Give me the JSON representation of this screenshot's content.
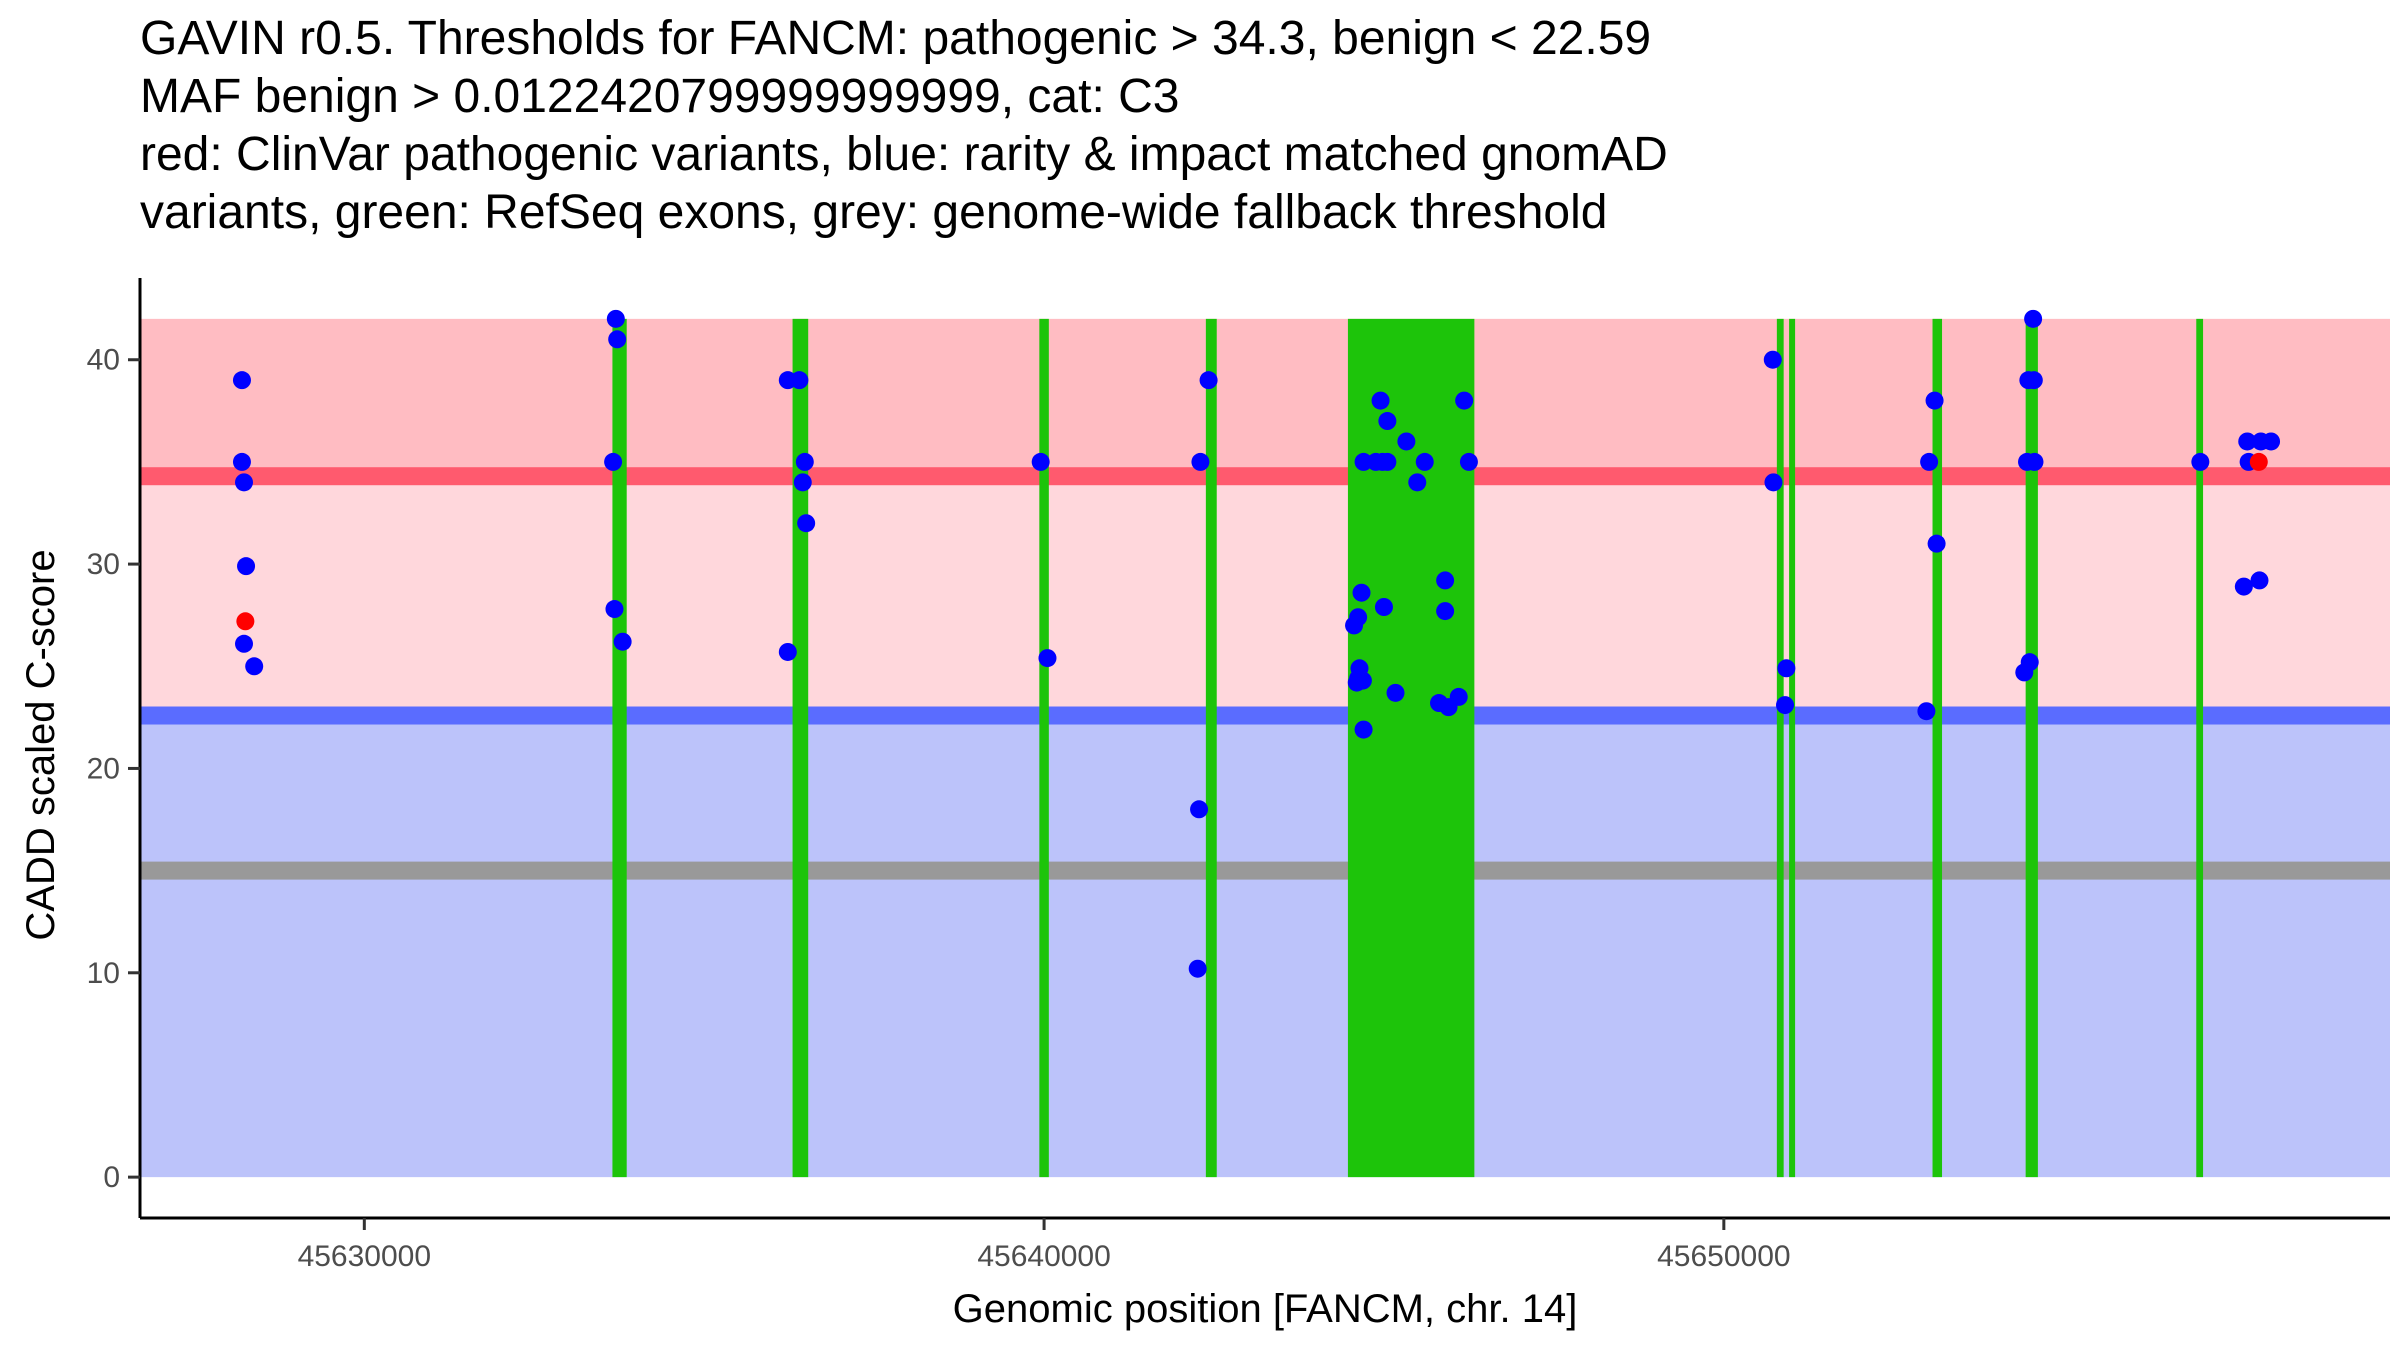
{
  "chart_data": {
    "type": "scatter",
    "title_lines": [
      "GAVIN r0.5. Thresholds for FANCM: pathogenic > 34.3, benign < 22.59",
      "MAF benign > 0.0122420799999999999, cat: C3",
      "red: ClinVar pathogenic variants, blue: rarity & impact matched gnomAD",
      "variants, green: RefSeq exons, grey: genome-wide fallback threshold"
    ],
    "xlabel": "Genomic position [FANCM, chr. 14]",
    "ylabel": "CADD scaled C-score",
    "xlim": [
      45626700,
      45659800
    ],
    "ylim": [
      -2,
      44
    ],
    "x_ticks": [
      45630000,
      45640000,
      45650000
    ],
    "x_tick_labels": [
      "45630000",
      "45640000",
      "45650000"
    ],
    "y_ticks": [
      0,
      10,
      20,
      30,
      40
    ],
    "y_tick_labels": [
      "0",
      "10",
      "20",
      "30",
      "40"
    ],
    "grid": false,
    "thresholds": {
      "pathogenic": 34.3,
      "benign": 22.59,
      "genome_wide_fallback": 15.0,
      "score_max": 42
    },
    "region_colors": {
      "pathogenic_band": "#ffbcc2",
      "grey_zone_band": "#ffd7dc",
      "benign_band": "#bcc3fa",
      "pathogenic_line": "#ff5a6e",
      "benign_line": "#5a6cff",
      "fallback_line": "#999999",
      "exon": "#1dc40a"
    },
    "exons": [
      [
        45633650,
        45633860
      ],
      [
        45636300,
        45636530
      ],
      [
        45639930,
        45640070
      ],
      [
        45642380,
        45642540
      ],
      [
        45644470,
        45646330
      ],
      [
        45650780,
        45650880
      ],
      [
        45650960,
        45651040
      ],
      [
        45653070,
        45653210
      ],
      [
        45654440,
        45654620
      ],
      [
        45656950,
        45657050
      ]
    ],
    "series": [
      {
        "name": "ClinVar pathogenic variants",
        "color": "#ff0000",
        "points": [
          [
            45628250,
            27.2
          ],
          [
            45657870,
            35.0
          ]
        ]
      },
      {
        "name": "rarity & impact matched gnomAD variants",
        "color": "#0000ff",
        "points": [
          [
            45628200,
            39.0
          ],
          [
            45628200,
            35.0
          ],
          [
            45628230,
            34.0
          ],
          [
            45628260,
            29.9
          ],
          [
            45628230,
            26.1
          ],
          [
            45628380,
            25.0
          ],
          [
            45633700,
            42.0
          ],
          [
            45633720,
            41.0
          ],
          [
            45633660,
            35.0
          ],
          [
            45633680,
            27.8
          ],
          [
            45633800,
            26.2
          ],
          [
            45636230,
            39.0
          ],
          [
            45636400,
            39.0
          ],
          [
            45636480,
            35.0
          ],
          [
            45636450,
            34.0
          ],
          [
            45636500,
            32.0
          ],
          [
            45636230,
            25.7
          ],
          [
            45639950,
            35.0
          ],
          [
            45640050,
            25.4
          ],
          [
            45642300,
            35.0
          ],
          [
            45642420,
            39.0
          ],
          [
            45642280,
            18.0
          ],
          [
            45642260,
            10.2
          ],
          [
            45644950,
            38.0
          ],
          [
            45645050,
            37.0
          ],
          [
            45645330,
            36.0
          ],
          [
            45644880,
            35.0
          ],
          [
            45644980,
            35.0
          ],
          [
            45645050,
            35.0
          ],
          [
            45645600,
            35.0
          ],
          [
            45644700,
            35.0
          ],
          [
            45645490,
            34.0
          ],
          [
            45646180,
            38.0
          ],
          [
            45646250,
            35.0
          ],
          [
            45644670,
            28.6
          ],
          [
            45644620,
            27.4
          ],
          [
            45644560,
            27.0
          ],
          [
            45645000,
            27.9
          ],
          [
            45645900,
            29.2
          ],
          [
            45645900,
            27.7
          ],
          [
            45644640,
            24.9
          ],
          [
            45644620,
            24.4
          ],
          [
            45644690,
            24.3
          ],
          [
            45644600,
            24.2
          ],
          [
            45645170,
            23.7
          ],
          [
            45645810,
            23.2
          ],
          [
            45645950,
            23.0
          ],
          [
            45646100,
            23.5
          ],
          [
            45644700,
            21.9
          ],
          [
            45650720,
            40.0
          ],
          [
            45650730,
            34.0
          ],
          [
            45650920,
            24.9
          ],
          [
            45650900,
            23.1
          ],
          [
            45653020,
            35.0
          ],
          [
            45653100,
            38.0
          ],
          [
            45653130,
            31.0
          ],
          [
            45652980,
            22.8
          ],
          [
            45654460,
            35.0
          ],
          [
            45654570,
            35.0
          ],
          [
            45654550,
            42.0
          ],
          [
            45654480,
            39.0
          ],
          [
            45654560,
            39.0
          ],
          [
            45654500,
            25.2
          ],
          [
            45654420,
            24.7
          ],
          [
            45657010,
            35.0
          ],
          [
            45657700,
            36.0
          ],
          [
            45657900,
            36.0
          ],
          [
            45658050,
            36.0
          ],
          [
            45657720,
            35.0
          ],
          [
            45657650,
            28.9
          ],
          [
            45657880,
            29.2
          ]
        ]
      }
    ]
  }
}
